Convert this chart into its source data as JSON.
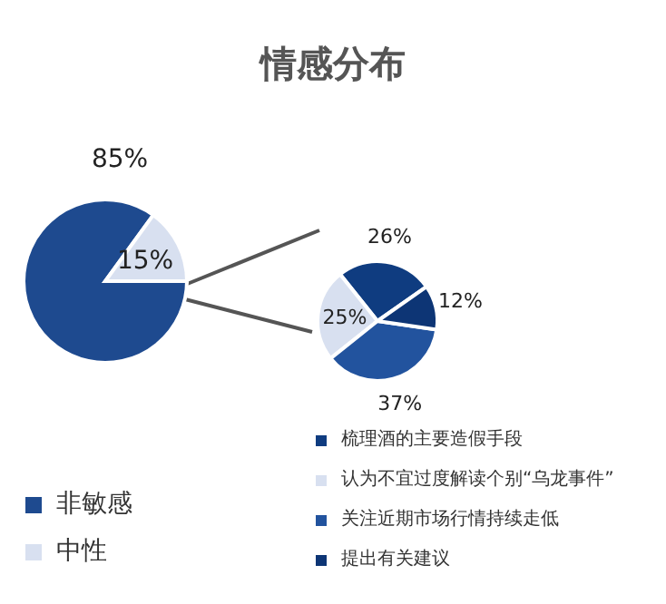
{
  "chart_data": [
    {
      "type": "pie",
      "title": "情感分布",
      "categories": [
        "非敏感",
        "中性"
      ],
      "values": [
        85,
        15
      ],
      "colors": [
        "#1e4a8f",
        "#d8e0f0"
      ],
      "value_labels": [
        "85%",
        "15%"
      ],
      "legend": "bottom left"
    },
    {
      "type": "pie",
      "categories": [
        "梳理酒的主要造假手段",
        "认为不宜过度解读个别“乌龙事件”",
        "关注近期市场行情持续走低",
        "提出有关建议"
      ],
      "values": [
        26,
        25,
        37,
        12
      ],
      "colors": [
        "#0f3c80",
        "#d8e0f0",
        "#22539e",
        "#0d3575"
      ],
      "value_labels": [
        "26%",
        "25%",
        "37%",
        "12%"
      ],
      "legend": "bottom"
    }
  ]
}
